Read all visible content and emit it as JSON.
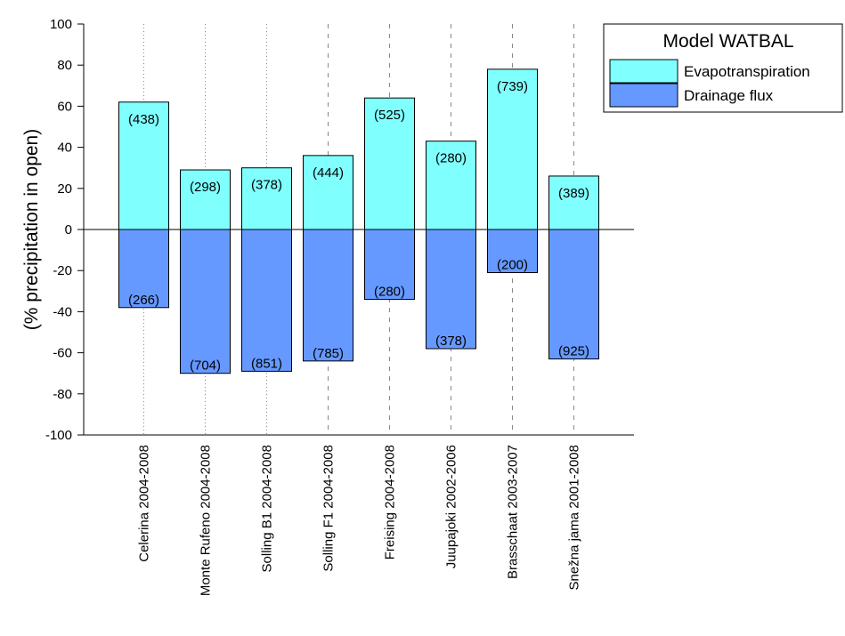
{
  "chart_data": {
    "type": "bar",
    "title": "",
    "ylabel": "(% precipitation in open)",
    "xlabel": "",
    "ylim": [
      -100,
      100
    ],
    "yticks": [
      100,
      80,
      60,
      40,
      20,
      0,
      -20,
      -40,
      -60,
      -80,
      -100
    ],
    "grid": false,
    "legend": {
      "title": "Model WATBAL",
      "placement": "top-right",
      "entries": [
        "Evapotranspiration",
        "Drainage flux"
      ]
    },
    "categories": [
      "Celerina 2004-2008",
      "Monte Rufeno 2004-2008",
      "Solling B1 2004-2008",
      "Solling F1 2004-2008",
      "Freising 2004-2008",
      "Juupajoki 2002-2006",
      "Brasschaat 2003-2007",
      "Snežna jama 2001-2008"
    ],
    "separator_styles": [
      "dotted",
      "dotted",
      "dotted",
      "dashed",
      "dashed",
      "dashed",
      "dashed",
      "dashed"
    ],
    "series": [
      {
        "name": "Evapotranspiration",
        "color": "#80ffff",
        "values": [
          62,
          29,
          30,
          36,
          64,
          43,
          78,
          26
        ],
        "labels": [
          "(438)",
          "(298)",
          "(378)",
          "(444)",
          "(525)",
          "(280)",
          "(739)",
          "(389)"
        ]
      },
      {
        "name": "Drainage flux",
        "color": "#6699ff",
        "values": [
          -38,
          -70,
          -69,
          -64,
          -34,
          -58,
          -21,
          -63
        ],
        "labels": [
          "(266)",
          "(704)",
          "(851)",
          "(785)",
          "(280)",
          "(378)",
          "(200)",
          "(925)"
        ]
      }
    ]
  }
}
